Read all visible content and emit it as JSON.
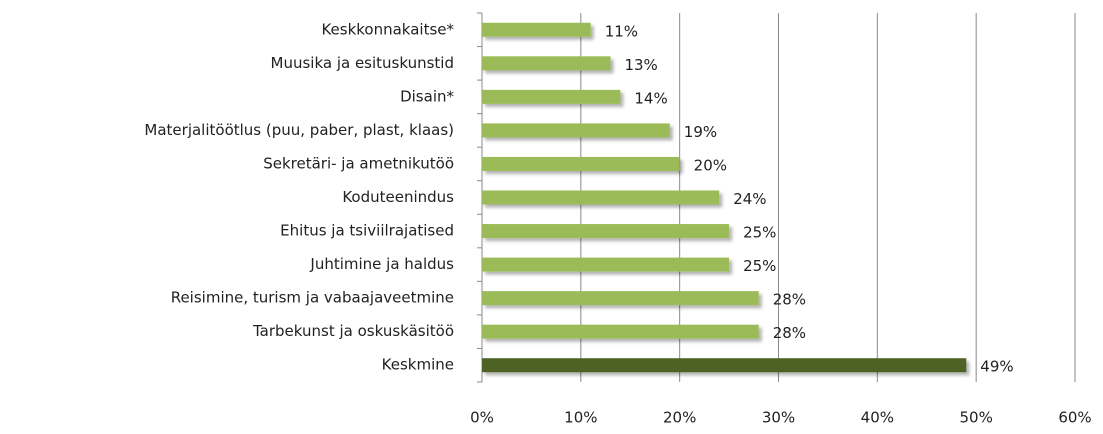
{
  "chart_data": {
    "type": "hbar",
    "categories": [
      "Keskkonnakaitse*",
      "Muusika ja esituskunstid",
      "Disain*",
      "Materjalitöötlus (puu, paber, plast, klaas)",
      "Sekretäri- ja ametnikutöö",
      "Koduteenindus",
      "Ehitus ja tsiviilrajatised",
      "Juhtimine ja haldus",
      "Reisimine, turism ja vabaajaveetmine",
      "Tarbekunst ja oskuskäsitöö",
      "Keskmine"
    ],
    "values": [
      11,
      13,
      14,
      19,
      20,
      24,
      25,
      25,
      28,
      28,
      49
    ],
    "value_labels": [
      "11%",
      "13%",
      "14%",
      "19%",
      "20%",
      "24%",
      "25%",
      "25%",
      "28%",
      "28%",
      "49%"
    ],
    "colors": [
      "#9bbb59",
      "#9bbb59",
      "#9bbb59",
      "#9bbb59",
      "#9bbb59",
      "#9bbb59",
      "#9bbb59",
      "#9bbb59",
      "#9bbb59",
      "#9bbb59",
      "#4f6228"
    ],
    "xlim": [
      0,
      60
    ],
    "xticks": [
      {
        "value": 0,
        "label": "0%"
      },
      {
        "value": 10,
        "label": "10%"
      },
      {
        "value": 20,
        "label": "20%"
      },
      {
        "value": 30,
        "label": "30%"
      },
      {
        "value": 40,
        "label": "40%"
      },
      {
        "value": 50,
        "label": "50%"
      },
      {
        "value": 60,
        "label": "60%"
      }
    ],
    "grid": true
  }
}
